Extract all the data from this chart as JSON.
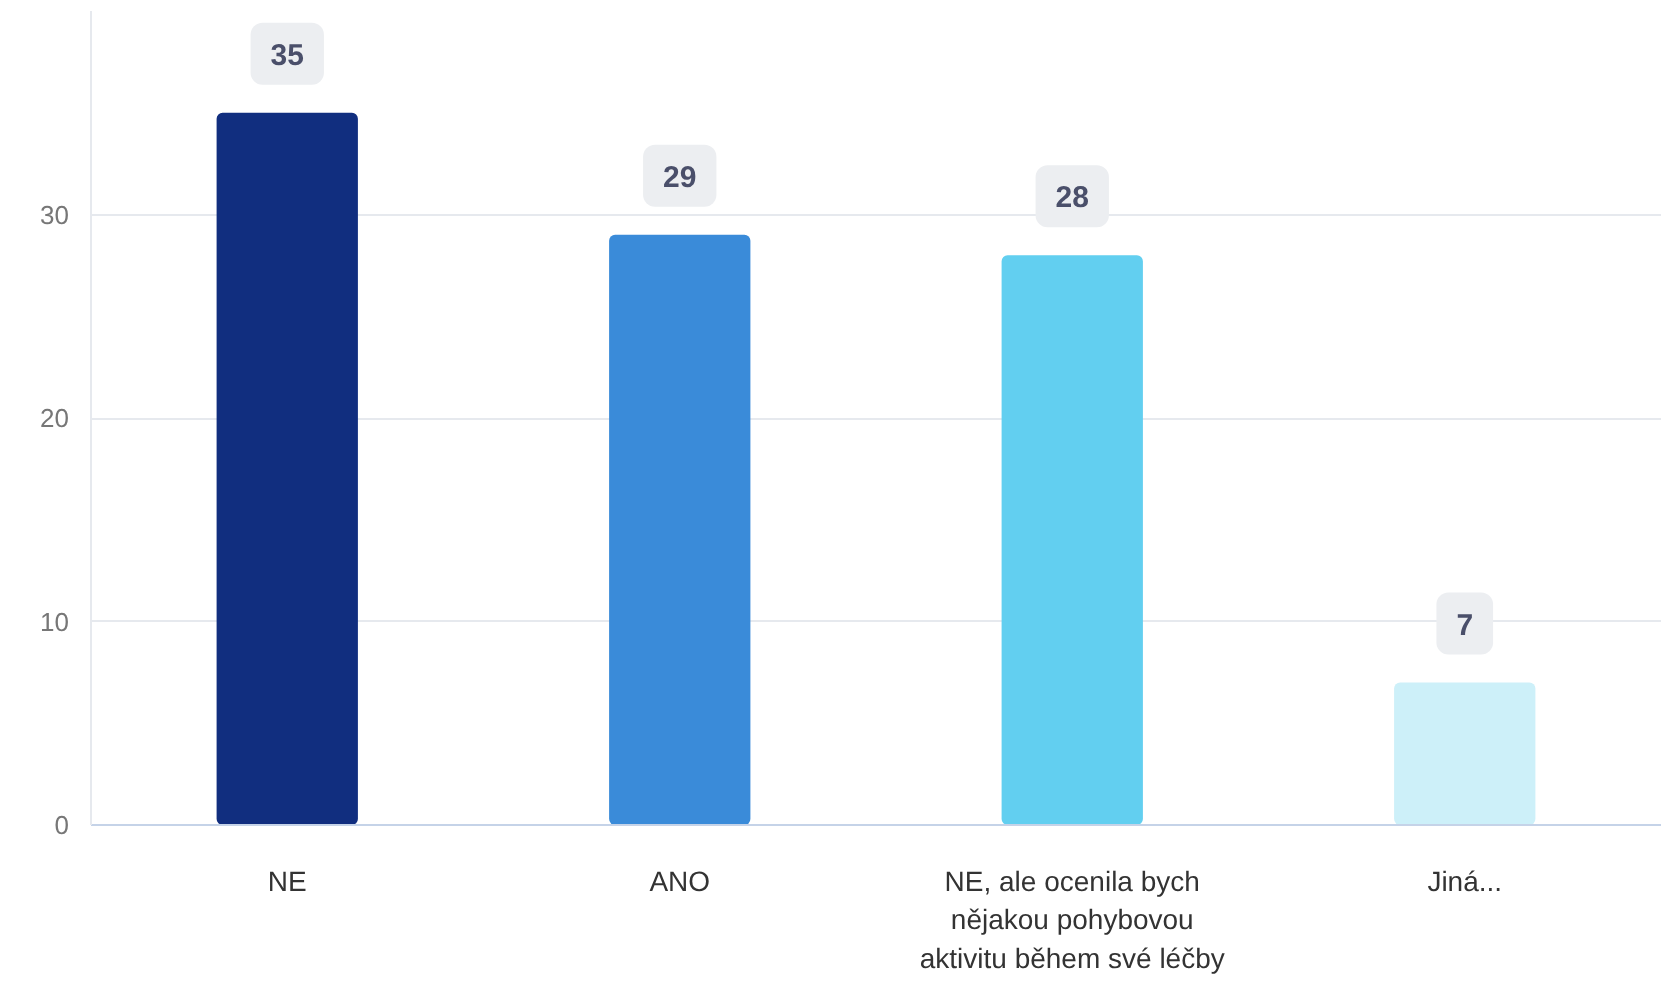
{
  "chart_data": {
    "type": "bar",
    "categories": [
      "NE",
      "ANO",
      "NE, ale ocenila bych\nnějakou pohybovou\naktivitu během své léčby",
      "Jiná..."
    ],
    "values": [
      35,
      29,
      28,
      7
    ],
    "colors": [
      "#112e7f",
      "#3a8bd9",
      "#62cff0",
      "#cdf0f9"
    ],
    "ylim": [
      0,
      40
    ],
    "yticks": [
      0,
      10,
      20,
      30
    ],
    "grid": "y",
    "data_labels": true
  }
}
